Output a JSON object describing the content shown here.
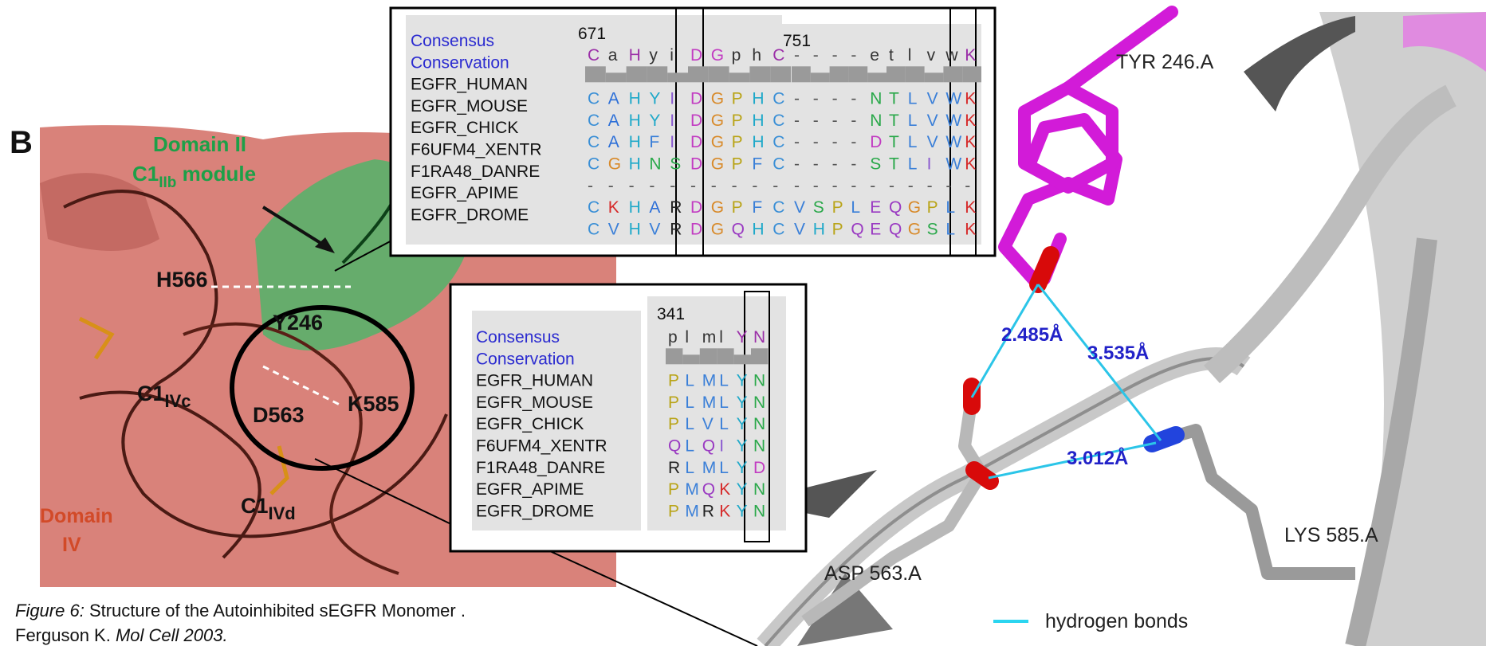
{
  "panel_label": "B",
  "left_figure": {
    "domain2_title": "Domain II",
    "domain2_module_c1": "C1",
    "domain2_module_sub": "IIb",
    "domain2_module_rest": " module",
    "h566": "H566",
    "y246": "Y246",
    "c1ivc": "C1",
    "c1ivc_sub": "IVc",
    "d563": "D563",
    "k585": "K585",
    "c1ivd": "C1",
    "c1ivd_sub": "IVd",
    "domain4_title": "Domain",
    "domain4_number": "IV"
  },
  "alignment_top": {
    "start_1": 671,
    "start_2": 751,
    "rows": [
      {
        "name": "Consensus",
        "block1": "CaHyiDGphC",
        "block2": "----etlvwK"
      },
      {
        "name": "Conservation"
      },
      {
        "name": "EGFR_HUMAN",
        "block1": "CAHYIDGPHC",
        "block2": "----NTLVWK"
      },
      {
        "name": "EGFR_MOUSE",
        "block1": "CAHYIDGPHC",
        "block2": "----NTLVWK"
      },
      {
        "name": "EGFR_CHICK",
        "block1": "CAHFIDGPHC",
        "block2": "----DTLVWK"
      },
      {
        "name": "F6UFM4_XENTR",
        "block1": "CGHNSDGPFC",
        "block2": "----STLIWK"
      },
      {
        "name": "F1RA48_DANRE",
        "block1": "----------",
        "block2": "----------"
      },
      {
        "name": "EGFR_APIME",
        "block1": "CKHARDGPFC",
        "block2": "VSPLEQGPLK"
      },
      {
        "name": "EGFR_DROME",
        "block1": "CVHVRDGQHC",
        "block2": "VHPQEQGSLK"
      }
    ]
  },
  "alignment_bottom": {
    "start_1": 341,
    "rows": [
      {
        "name": "Consensus",
        "block1": "plmlYN"
      },
      {
        "name": "Conservation"
      },
      {
        "name": "EGFR_HUMAN",
        "block1": "PLMLYN"
      },
      {
        "name": "EGFR_MOUSE",
        "block1": "PLMLYN"
      },
      {
        "name": "EGFR_CHICK",
        "block1": "PLVLYN"
      },
      {
        "name": "F6UFM4_XENTR",
        "block1": "QLQIYN"
      },
      {
        "name": "F1RA48_DANRE",
        "block1": "RLMLYD"
      },
      {
        "name": "EGFR_APIME",
        "block1": "PMQKYN"
      },
      {
        "name": "EGFR_DROME",
        "block1": "PMRKYN"
      }
    ]
  },
  "structure": {
    "tyr_label": "TYR 246.A",
    "lys_label": "LYS 585.A",
    "asp_label": "ASP 563.A",
    "distance_1": "2.485Å",
    "distance_2": "3.535Å",
    "distance_3": "3.012Å",
    "legend": "hydrogen bonds"
  },
  "caption": {
    "figure_label": "Figure 6:",
    "title": " Structure of the Autoinhibited sEGFR Monomer .",
    "authors": "Ferguson K. ",
    "journal": "Mol Cell 2003."
  }
}
